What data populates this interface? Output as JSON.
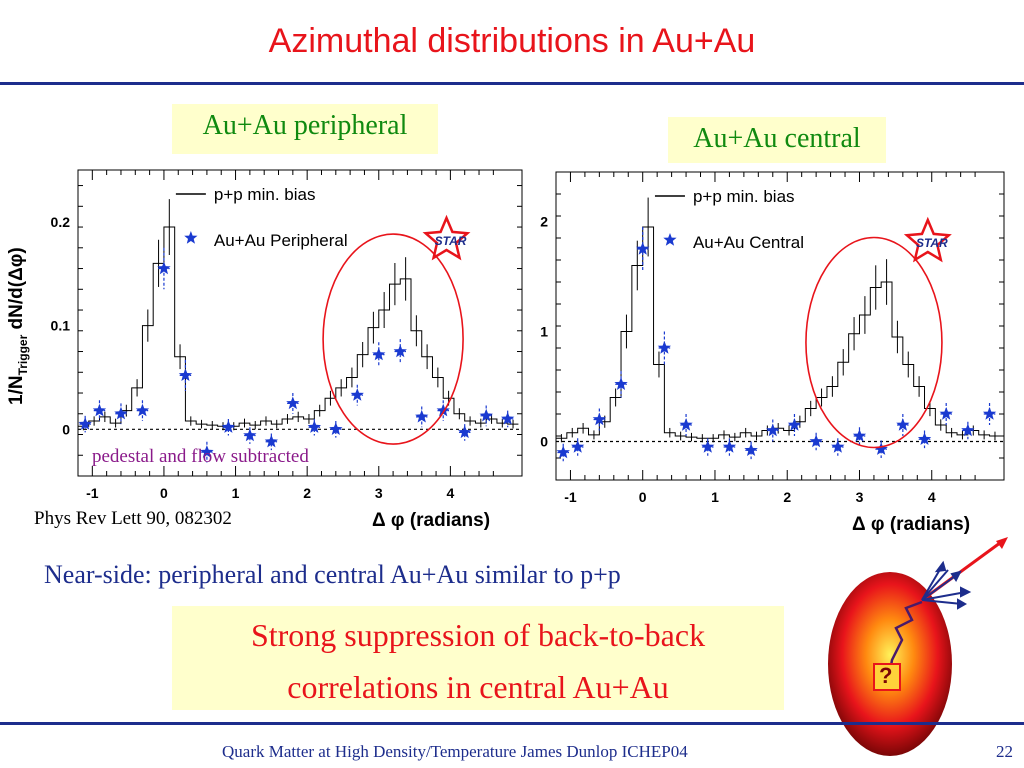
{
  "slide": {
    "title": "Azimuthal distributions in Au+Au",
    "label_peripheral": "Au+Au peripheral",
    "label_central": "Au+Au central",
    "citation": "Phys Rev Lett 90, 082302",
    "pedestal_note": "pedestal and flow subtracted",
    "near_side": "Near-side: peripheral and central Au+Au similar to p+p",
    "strong_line1": "Strong suppression of back-to-back",
    "strong_line2": "correlations in central Au+Au",
    "footer": "Quark Matter at High Density/Temperature James Dunlop ICHEP04",
    "page": "22",
    "question_mark": "?",
    "accent_color": "#e8141b",
    "rule_color": "#1d2d8c"
  },
  "star_logo_text": "STAR",
  "chart_data": [
    {
      "type": "line",
      "panel": "peripheral",
      "xlabel_prefix": "Δ φ",
      "xlabel_suffix": "(radians)",
      "ylabel_main": "1/N",
      "ylabel_sub": "Trigger",
      "ylabel_rest": " dN/d(Δφ)",
      "xlim": [
        -1.2,
        5.0
      ],
      "ylim": [
        -0.045,
        0.25
      ],
      "xticks": [
        -1,
        0,
        1,
        2,
        3,
        4
      ],
      "yticks": [
        0,
        0.1,
        0.2
      ],
      "ytick_labels": [
        "0",
        "0.1",
        "0.2"
      ],
      "legend": [
        "p+p min. bias",
        "Au+Au Peripheral"
      ],
      "pp_edges": [
        -1.2,
        -1.05,
        -0.9,
        -0.75,
        -0.6,
        -0.45,
        -0.3,
        -0.15,
        0.0,
        0.15,
        0.3,
        0.45,
        0.6,
        0.75,
        0.9,
        1.05,
        1.2,
        1.35,
        1.5,
        1.65,
        1.8,
        1.95,
        2.1,
        2.25,
        2.4,
        2.55,
        2.7,
        2.85,
        3.0,
        3.15,
        3.3,
        3.45,
        3.6,
        3.75,
        3.9,
        4.05,
        4.2,
        4.35,
        4.5,
        4.65,
        4.8,
        4.95
      ],
      "pp_values": [
        0.003,
        0.008,
        0.012,
        0.006,
        0.018,
        0.04,
        0.1,
        0.16,
        0.195,
        0.07,
        0.008,
        0.005,
        0.004,
        0.003,
        0.003,
        0.006,
        0.004,
        0.008,
        0.005,
        0.01,
        0.012,
        0.01,
        0.018,
        0.03,
        0.04,
        0.05,
        0.072,
        0.098,
        0.115,
        0.14,
        0.145,
        0.095,
        0.07,
        0.05,
        0.03,
        0.015,
        0.008,
        0.006,
        0.01,
        0.006,
        0.005
      ],
      "aa_points": [
        {
          "x": -1.1,
          "y": 0.005,
          "ex": 0.08,
          "ey": 0.008
        },
        {
          "x": -0.9,
          "y": 0.018,
          "ex": 0.08,
          "ey": 0.01
        },
        {
          "x": -0.6,
          "y": 0.015,
          "ex": 0.08,
          "ey": 0.01
        },
        {
          "x": -0.3,
          "y": 0.018,
          "ex": 0.08,
          "ey": 0.01
        },
        {
          "x": 0.0,
          "y": 0.155,
          "ex": 0.08,
          "ey": 0.02
        },
        {
          "x": 0.3,
          "y": 0.052,
          "ex": 0.08,
          "ey": 0.015
        },
        {
          "x": 0.6,
          "y": -0.022,
          "ex": 0.08,
          "ey": 0.01
        },
        {
          "x": 0.9,
          "y": 0.002,
          "ex": 0.08,
          "ey": 0.008
        },
        {
          "x": 1.2,
          "y": -0.006,
          "ex": 0.08,
          "ey": 0.008
        },
        {
          "x": 1.5,
          "y": -0.012,
          "ex": 0.08,
          "ey": 0.008
        },
        {
          "x": 1.8,
          "y": 0.025,
          "ex": 0.08,
          "ey": 0.01
        },
        {
          "x": 2.1,
          "y": 0.002,
          "ex": 0.08,
          "ey": 0.008
        },
        {
          "x": 2.4,
          "y": 0.0,
          "ex": 0.08,
          "ey": 0.008
        },
        {
          "x": 2.7,
          "y": 0.033,
          "ex": 0.08,
          "ey": 0.01
        },
        {
          "x": 3.0,
          "y": 0.072,
          "ex": 0.08,
          "ey": 0.012
        },
        {
          "x": 3.3,
          "y": 0.075,
          "ex": 0.08,
          "ey": 0.012
        },
        {
          "x": 3.6,
          "y": 0.012,
          "ex": 0.08,
          "ey": 0.01
        },
        {
          "x": 3.9,
          "y": 0.018,
          "ex": 0.08,
          "ey": 0.01
        },
        {
          "x": 4.2,
          "y": -0.003,
          "ex": 0.08,
          "ey": 0.008
        },
        {
          "x": 4.5,
          "y": 0.013,
          "ex": 0.08,
          "ey": 0.01
        },
        {
          "x": 4.8,
          "y": 0.01,
          "ex": 0.08,
          "ey": 0.008
        }
      ]
    },
    {
      "type": "line",
      "panel": "central",
      "xlabel_prefix": "Δ φ",
      "xlabel_suffix": "(radians)",
      "xlim": [
        -1.2,
        5.0
      ],
      "ylim": [
        -0.35,
        2.45
      ],
      "xticks": [
        -1,
        0,
        1,
        2,
        3,
        4
      ],
      "yticks": [
        0,
        1,
        2
      ],
      "ytick_labels": [
        "0",
        "1",
        "2"
      ],
      "legend": [
        "p+p min. bias",
        "Au+Au Central"
      ],
      "pp_edges": [
        -1.2,
        -1.05,
        -0.9,
        -0.75,
        -0.6,
        -0.45,
        -0.3,
        -0.15,
        0.0,
        0.15,
        0.3,
        0.45,
        0.6,
        0.75,
        0.9,
        1.05,
        1.2,
        1.35,
        1.5,
        1.65,
        1.8,
        1.95,
        2.1,
        2.25,
        2.4,
        2.55,
        2.7,
        2.85,
        3.0,
        3.15,
        3.3,
        3.45,
        3.6,
        3.75,
        3.9,
        4.05,
        4.2,
        4.35,
        4.5,
        4.65,
        4.8,
        4.95
      ],
      "pp_values": [
        0.03,
        0.08,
        0.12,
        0.06,
        0.18,
        0.4,
        1.0,
        1.6,
        1.95,
        0.7,
        0.08,
        0.05,
        0.04,
        0.03,
        0.03,
        0.06,
        0.04,
        0.08,
        0.05,
        0.1,
        0.12,
        0.1,
        0.18,
        0.3,
        0.4,
        0.5,
        0.72,
        0.98,
        1.15,
        1.4,
        1.45,
        0.95,
        0.7,
        0.5,
        0.3,
        0.15,
        0.08,
        0.06,
        0.1,
        0.06,
        0.05
      ],
      "aa_points": [
        {
          "x": -1.1,
          "y": -0.1,
          "ex": 0.08,
          "ey": 0.08
        },
        {
          "x": -0.9,
          "y": -0.05,
          "ex": 0.08,
          "ey": 0.08
        },
        {
          "x": -0.6,
          "y": 0.2,
          "ex": 0.08,
          "ey": 0.1
        },
        {
          "x": -0.3,
          "y": 0.52,
          "ex": 0.08,
          "ey": 0.12
        },
        {
          "x": 0.0,
          "y": 1.75,
          "ex": 0.08,
          "ey": 0.2
        },
        {
          "x": 0.3,
          "y": 0.85,
          "ex": 0.08,
          "ey": 0.15
        },
        {
          "x": 0.6,
          "y": 0.15,
          "ex": 0.08,
          "ey": 0.1
        },
        {
          "x": 0.9,
          "y": -0.05,
          "ex": 0.08,
          "ey": 0.08
        },
        {
          "x": 1.2,
          "y": -0.05,
          "ex": 0.08,
          "ey": 0.08
        },
        {
          "x": 1.5,
          "y": -0.08,
          "ex": 0.08,
          "ey": 0.08
        },
        {
          "x": 1.8,
          "y": 0.1,
          "ex": 0.08,
          "ey": 0.1
        },
        {
          "x": 2.1,
          "y": 0.15,
          "ex": 0.08,
          "ey": 0.1
        },
        {
          "x": 2.4,
          "y": 0.0,
          "ex": 0.08,
          "ey": 0.08
        },
        {
          "x": 2.7,
          "y": -0.05,
          "ex": 0.08,
          "ey": 0.08
        },
        {
          "x": 3.0,
          "y": 0.05,
          "ex": 0.08,
          "ey": 0.08
        },
        {
          "x": 3.3,
          "y": -0.07,
          "ex": 0.08,
          "ey": 0.08
        },
        {
          "x": 3.6,
          "y": 0.15,
          "ex": 0.08,
          "ey": 0.1
        },
        {
          "x": 3.9,
          "y": 0.02,
          "ex": 0.08,
          "ey": 0.08
        },
        {
          "x": 4.2,
          "y": 0.25,
          "ex": 0.08,
          "ey": 0.1
        },
        {
          "x": 4.5,
          "y": 0.1,
          "ex": 0.08,
          "ey": 0.08
        },
        {
          "x": 4.8,
          "y": 0.25,
          "ex": 0.08,
          "ey": 0.1
        }
      ]
    }
  ]
}
